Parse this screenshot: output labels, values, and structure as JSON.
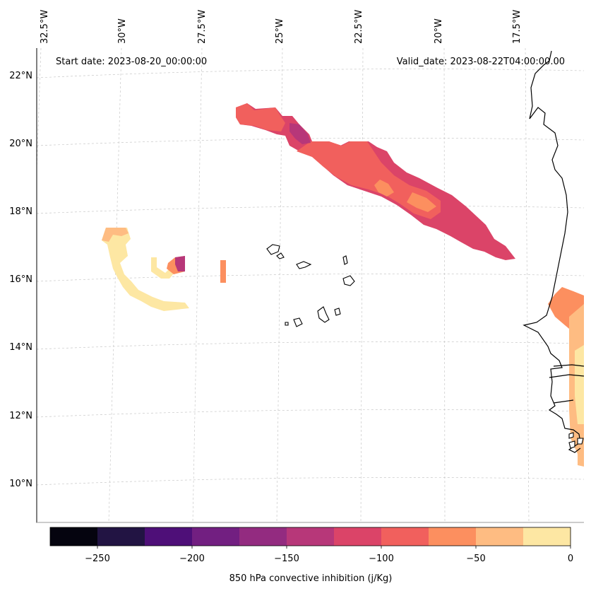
{
  "header": {
    "start_label": "Start date: 2023-08-20_00:00:00",
    "valid_label": "Valid_date: 2023-08-22T04:00:00.00"
  },
  "axes": {
    "lon_labels": [
      "32.5°W",
      "30°W",
      "27.5°W",
      "25°W",
      "22.5°W",
      "20°W",
      "17.5°W"
    ],
    "lat_labels": [
      "22°N",
      "20°N",
      "18°N",
      "16°N",
      "14°N",
      "12°N",
      "10°N"
    ]
  },
  "colorbar": {
    "label": "850 hPa convective inhibition (j/Kg)",
    "ticks": [
      "−250",
      "−200",
      "−150",
      "−100",
      "−50",
      "0"
    ],
    "levels": [
      -275,
      -250,
      -225,
      -200,
      -175,
      -150,
      -125,
      -100,
      -75,
      -50,
      -25,
      0
    ],
    "colors": [
      "#05040f",
      "#221443",
      "#4e0f78",
      "#721f81",
      "#932b80",
      "#b73779",
      "#db4468",
      "#f1605d",
      "#fc8f5f",
      "#febc82",
      "#fde7a3"
    ]
  },
  "legend_colors": {
    "very_light": "#fde7a3",
    "light": "#febc82",
    "orange": "#fc8f5f",
    "salmon": "#f1605d",
    "rose": "#db4468",
    "magenta": "#b73779",
    "purple": "#932b80"
  }
}
